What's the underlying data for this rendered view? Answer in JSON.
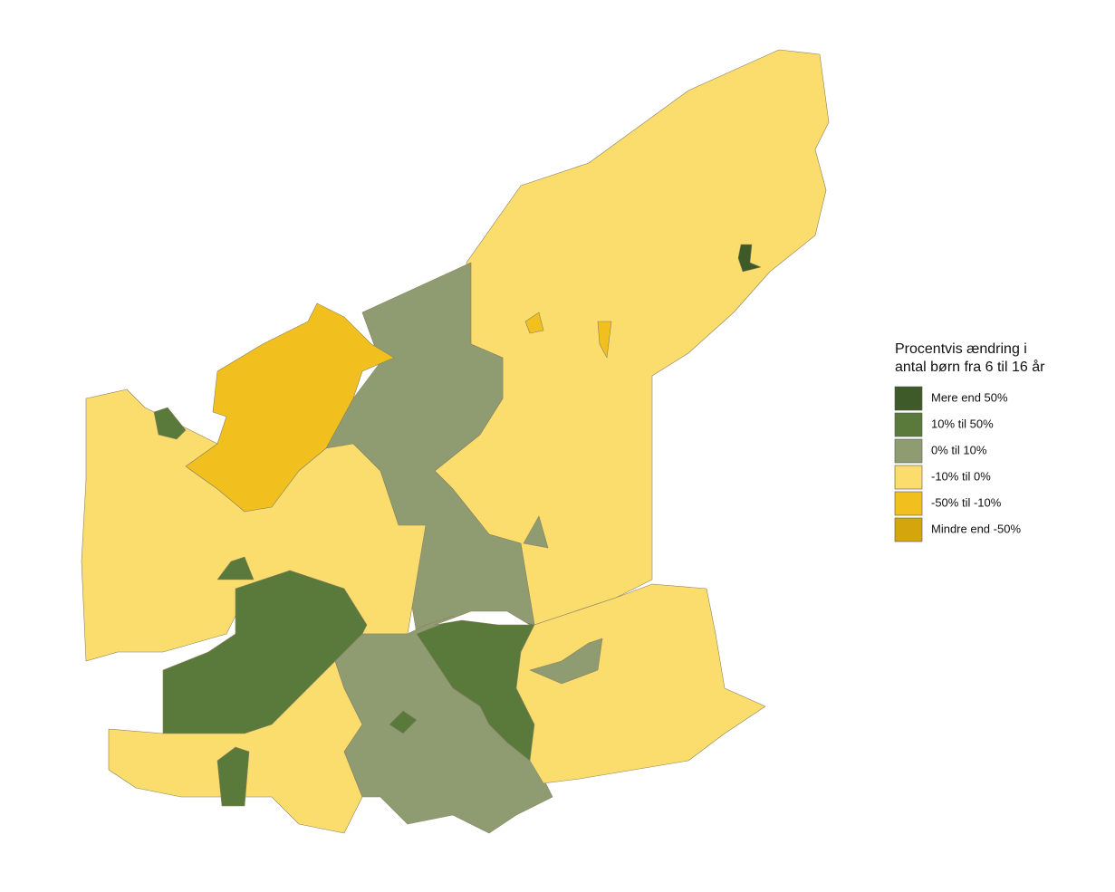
{
  "legend": {
    "title_lines": [
      "Procentvis ændring i",
      "antal børn fra 6 til 16 år"
    ],
    "items": [
      {
        "label": "Mere end 50%",
        "color": "#3d5a28"
      },
      {
        "label": "10% til 50%",
        "color": "#5a7a3c"
      },
      {
        "label": "0% til 10%",
        "color": "#8f9c72"
      },
      {
        "label": "-10% til 0%",
        "color": "#fbdd6e"
      },
      {
        "label": "-50% til -10%",
        "color": "#f2c01e"
      },
      {
        "label": "Mindre end -50%",
        "color": "#d4a50c"
      }
    ]
  }
}
